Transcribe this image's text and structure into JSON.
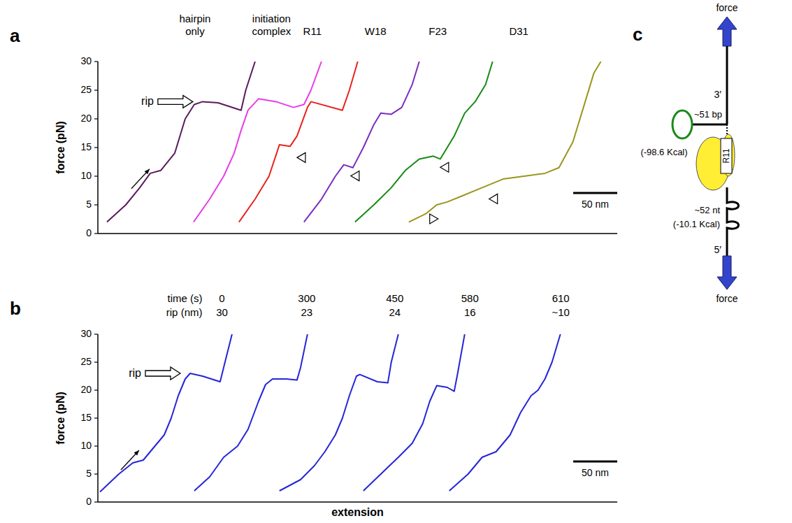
{
  "chart_data": [
    {
      "panel": "a",
      "type": "line",
      "ylabel": "force (pN)",
      "annotation": "rip",
      "xlim": [
        0,
        590
      ],
      "ylim": [
        0,
        30
      ],
      "yticks": [
        0,
        5,
        10,
        15,
        20,
        25,
        30
      ],
      "tick_labels": "y",
      "scale_bar": {
        "value": 50,
        "label": "50 nm"
      },
      "series": [
        {
          "name": "hairpin only",
          "color": "#5a1a5e",
          "x": [
            10.3,
            31.7,
            47.6,
            59.5,
            71.4,
            87.3,
            99.2,
            109.5,
            119,
            136.5,
            162.7,
            168,
            178.6
          ],
          "values": [
            2,
            5,
            8,
            10.5,
            11,
            14,
            20,
            22.5,
            23,
            22.8,
            21.5,
            25,
            30
          ]
        },
        {
          "name": "initiation complex",
          "color": "#e63ee6",
          "x": [
            108.7,
            127,
            142.9,
            154.8,
            162.7,
            170.6,
            182.5,
            202.4,
            222.2,
            234.1,
            242,
            254
          ],
          "values": [
            2,
            6,
            10,
            14,
            18,
            21.5,
            23.5,
            23,
            22,
            22.5,
            25,
            30
          ]
        },
        {
          "name": "R11",
          "color": "#e8231e",
          "x": [
            160.3,
            178.6,
            194.4,
            206.3,
            218.3,
            226.2,
            238.1,
            242.1,
            277.8,
            285.7,
            295.2
          ],
          "values": [
            2,
            6,
            10,
            15.5,
            15.2,
            17,
            22,
            23,
            21.5,
            25,
            30
          ],
          "steps": [
            {
              "x": 218.3,
              "y": 15.2,
              "marker": "triangle-left"
            }
          ]
        },
        {
          "name": "W18",
          "color": "#7a2dc0",
          "x": [
            234.1,
            254,
            269.8,
            279.4,
            289.7,
            301.6,
            313.5,
            321.4,
            333.3,
            345.2,
            357.1,
            365.1
          ],
          "values": [
            2,
            6,
            10,
            12,
            11.5,
            15,
            19,
            21,
            20.8,
            22,
            26,
            30
          ],
          "steps": [
            {
              "x": 279.4,
              "y": 12,
              "marker": "triangle-left"
            }
          ]
        },
        {
          "name": "F23",
          "color": "#158a15",
          "x": [
            292.1,
            313.5,
            333.3,
            349.2,
            365.1,
            381,
            388.9,
            404.8,
            416.7,
            428.6,
            440.5,
            448.4
          ],
          "values": [
            2,
            5,
            8,
            11,
            13,
            13.5,
            13,
            17,
            21,
            23,
            26,
            30
          ],
          "steps": [
            {
              "x": 381,
              "y": 13.5,
              "marker": "triangle-left"
            }
          ]
        },
        {
          "name": "D31",
          "color": "#9a961e",
          "x": [
            353.2,
            373,
            384.9,
            396.8,
            412.7,
            436.5,
            460.3,
            484.1,
            507.9,
            523.8,
            539.7,
            551.6,
            563.5,
            571.4
          ],
          "values": [
            2,
            3.5,
            5,
            5.5,
            6.5,
            8,
            9.5,
            10,
            10.5,
            11.5,
            16,
            22,
            28,
            30
          ],
          "steps": [
            {
              "x": 436.5,
              "y": 8,
              "marker": "triangle-left"
            },
            {
              "x": 384.9,
              "y": 5,
              "marker": "triangle-right"
            }
          ]
        }
      ]
    },
    {
      "panel": "b",
      "type": "line",
      "ylabel": "force (pN)",
      "xlabel": "extension",
      "annotation": "rip",
      "time_label": "time (s)",
      "rip_label": "rip (nm)",
      "xlim": [
        0,
        590
      ],
      "ylim": [
        0,
        30
      ],
      "yticks": [
        0,
        5,
        10,
        15,
        20,
        25,
        30
      ],
      "tick_labels": "y",
      "scale_bar": {
        "value": 50,
        "label": "50 nm"
      },
      "series": [
        {
          "color": "#2525d8",
          "time": 0,
          "rip": 30,
          "x": [
            2.4,
            23.8,
            39.7,
            51.6,
            59.5,
            75.4,
            83.3,
            91.3,
            99.2,
            104.8,
            119,
            138.9,
            144.4,
            152.4
          ],
          "values": [
            1.8,
            5,
            7,
            7.5,
            9,
            12,
            15,
            19,
            22,
            23,
            22.5,
            21.5,
            25,
            30
          ]
        },
        {
          "color": "#2525d8",
          "time": 300,
          "rip": 23,
          "x": [
            109.5,
            127,
            142.9,
            158.7,
            170.6,
            182.5,
            190.5,
            198.4,
            214.3,
            226.2,
            230.2,
            238.1
          ],
          "values": [
            2,
            4.5,
            8,
            10,
            13,
            18,
            21,
            22,
            22,
            21.8,
            24,
            30
          ]
        },
        {
          "color": "#2525d8",
          "time": 450,
          "rip": 24,
          "x": [
            206.3,
            230.2,
            246,
            257.9,
            269.8,
            277.8,
            285.7,
            293.7,
            297.6,
            317.5,
            329.4,
            333.3,
            341.3
          ],
          "values": [
            2,
            4,
            6.5,
            9,
            12,
            15,
            19,
            22.5,
            22.8,
            21.5,
            21.3,
            25,
            30
          ]
        },
        {
          "color": "#2525d8",
          "time": 580,
          "rip": 16,
          "x": [
            301.6,
            321.4,
            341.3,
            357.1,
            369,
            377,
            384.9,
            396.8,
            404.8,
            408.7,
            416.7
          ],
          "values": [
            2,
            5,
            8,
            10.5,
            14,
            18,
            20.8,
            20.5,
            19.8,
            23,
            30
          ]
        },
        {
          "color": "#2525d8",
          "time": 610,
          "rip": {
            "value": 10,
            "label": "~10"
          },
          "x": [
            399.2,
            420.6,
            436.5,
            452.4,
            468.3,
            480.2,
            492.1,
            500,
            507.9,
            515.9,
            525.4
          ],
          "values": [
            2,
            5,
            8,
            9,
            12,
            16,
            19,
            20,
            22,
            25,
            30
          ]
        }
      ]
    }
  ],
  "diagram": {
    "label": "c",
    "top_force": "force",
    "three_prime": "3′",
    "hairpin_length": "~51 bp",
    "hairpin_energy": "(-98.6 Kcal)",
    "protein": "R11",
    "ssrna_length": "~52 nt",
    "ssrna_energy": "(-10.1 Kcal)",
    "five_prime": "5′",
    "bottom_force": "force"
  }
}
